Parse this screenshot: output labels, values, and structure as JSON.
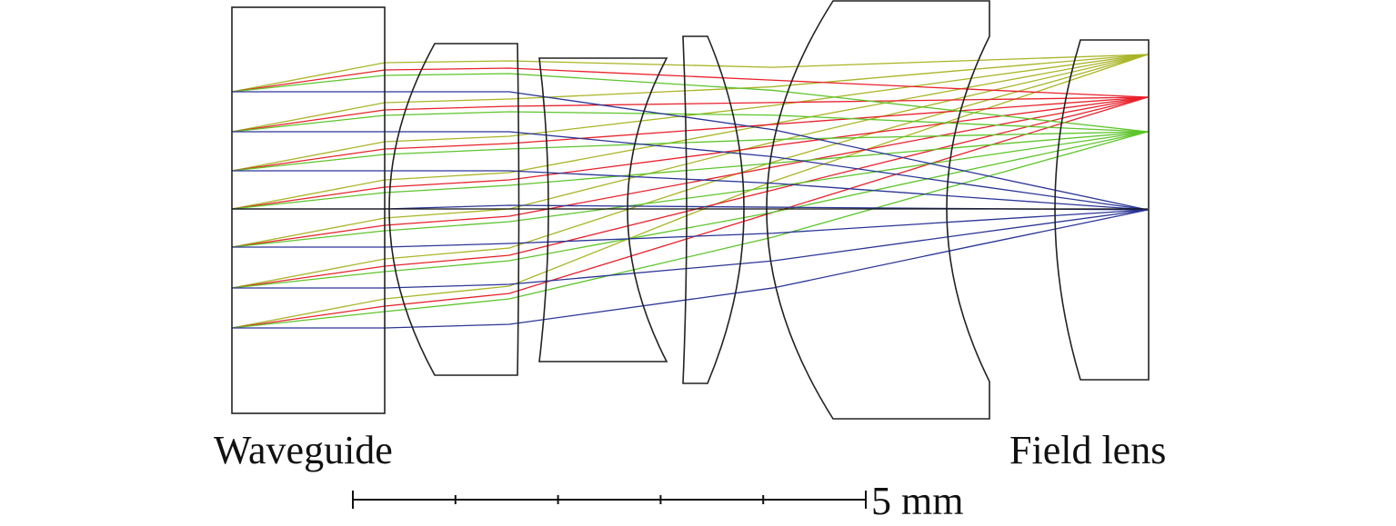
{
  "labels": {
    "waveguide": "Waveguide",
    "field_lens": "Field lens"
  },
  "scale_bar": {
    "label": "5 mm",
    "divisions": 5
  },
  "colors": {
    "lens": "#222222",
    "yellow": "#a8b526",
    "red": "#e8212b",
    "green": "#5dc52a",
    "blue": "#2a3596",
    "axis": "#111111"
  }
}
